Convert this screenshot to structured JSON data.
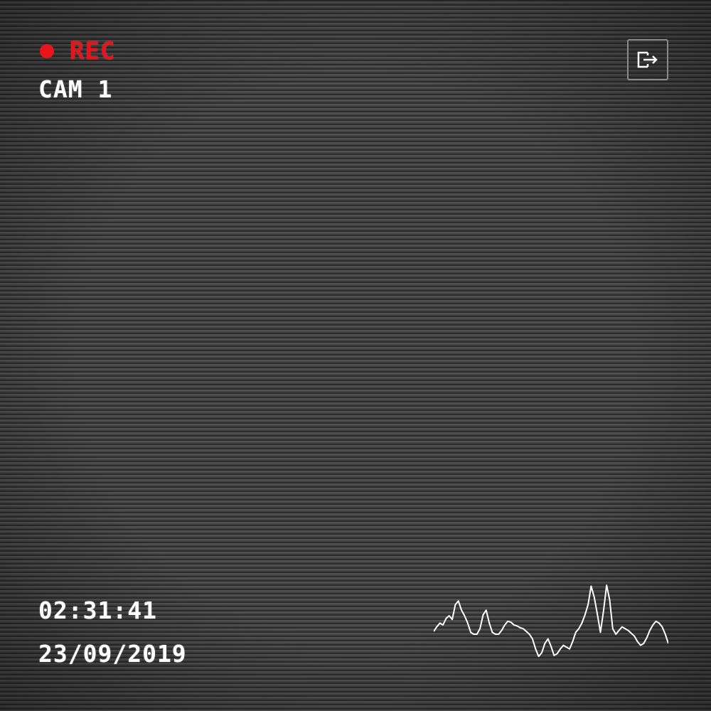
{
  "recording": {
    "label": "REC",
    "dot_color": "#e8141c",
    "label_color": "#e8141c"
  },
  "camera": {
    "name": "CAM 1"
  },
  "timestamp": {
    "time": "02:31:41",
    "date": "23/09/2019"
  },
  "exit_button": {
    "icon": "exit-icon"
  },
  "audio_waveform": {
    "color": "#ffffff",
    "samples": [
      0.13,
      0.18,
      0.22,
      0.2,
      0.27,
      0.3,
      0.26,
      0.42,
      0.46,
      0.36,
      0.3,
      0.22,
      0.12,
      0.1,
      0.1,
      0.16,
      0.31,
      0.36,
      0.22,
      0.12,
      0.1,
      0.1,
      0.14,
      0.2,
      0.24,
      0.23,
      0.2,
      0.19,
      0.17,
      0.16,
      0.13,
      0.1,
      0.05,
      -0.06,
      -0.14,
      -0.1,
      0.0,
      0.05,
      -0.03,
      -0.13,
      -0.11,
      -0.06,
      -0.02,
      -0.04,
      -0.06,
      0.02,
      0.12,
      0.16,
      0.22,
      0.31,
      0.42,
      0.62,
      0.5,
      0.32,
      0.12,
      0.35,
      0.63,
      0.47,
      0.16,
      0.1,
      0.14,
      0.18,
      0.16,
      0.14,
      0.11,
      0.08,
      0.02,
      -0.02,
      0.0,
      0.06,
      0.14,
      0.2,
      0.24,
      0.22,
      0.18,
      0.1,
      0.0
    ]
  }
}
